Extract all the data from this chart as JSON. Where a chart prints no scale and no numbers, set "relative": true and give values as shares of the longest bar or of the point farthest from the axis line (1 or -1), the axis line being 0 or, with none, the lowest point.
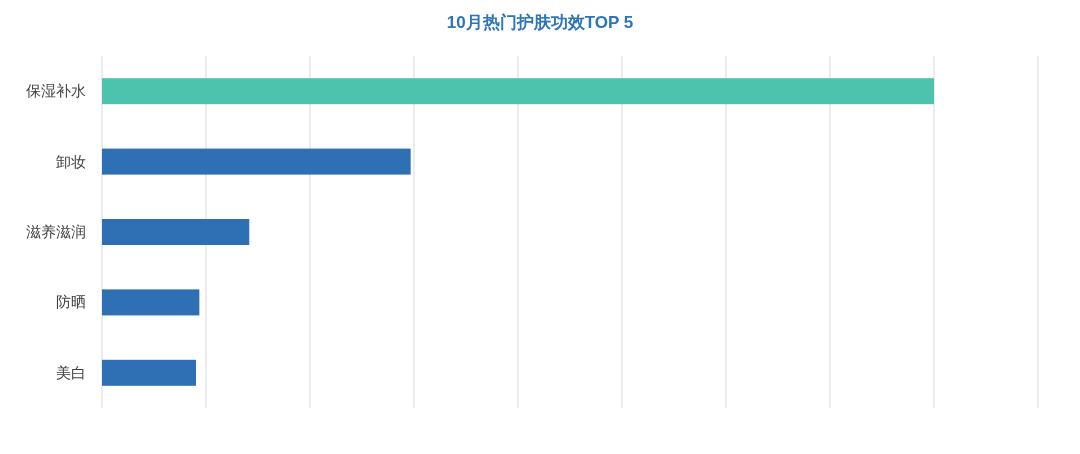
{
  "chart_data": {
    "type": "bar",
    "orientation": "horizontal",
    "relative": true,
    "title": "10月热门护肤功效TOP 5",
    "categories": [
      "保湿补水",
      "卸妆",
      "滋养滋润",
      "防晒",
      "美白"
    ],
    "values": [
      1,
      0.371,
      0.177,
      0.117,
      0.113
    ],
    "colors": [
      "#4dc2ad",
      "#2e70b3",
      "#2e70b3",
      "#2e70b3",
      "#2e70b3"
    ],
    "grid": "x"
  }
}
